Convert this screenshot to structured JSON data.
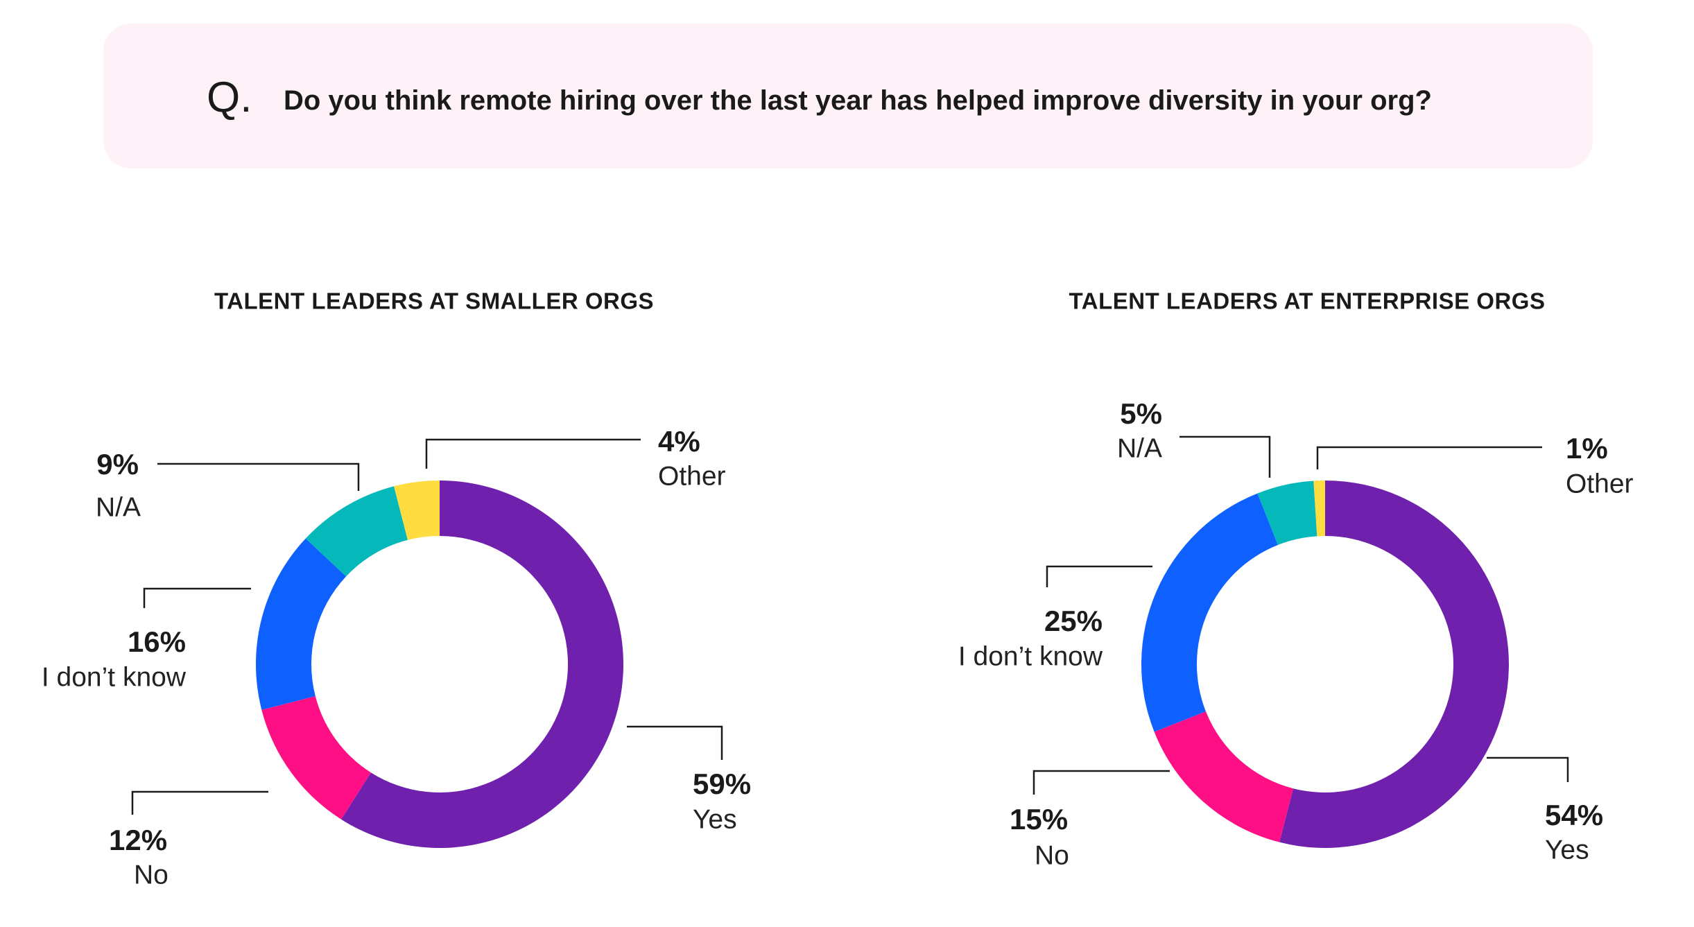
{
  "question": {
    "prefix": "Q.",
    "text": "Do you think remote hiring over the last year has helped improve diversity in your org?"
  },
  "colors": {
    "Yes": "#6f21ad",
    "No": "#ff0f85",
    "I don’t know": "#0f61ff",
    "N/A": "#05b8ba",
    "Other": "#ffdd40",
    "question_bg": "#fef2f8"
  },
  "chart_data": [
    {
      "type": "pie",
      "donut": true,
      "title": "TALENT LEADERS AT SMALLER ORGS",
      "categories": [
        "Yes",
        "No",
        "I don’t know",
        "N/A",
        "Other"
      ],
      "values": [
        59,
        12,
        16,
        9,
        4
      ],
      "labels": [
        "59%",
        "12%",
        "16%",
        "9%",
        "4%"
      ]
    },
    {
      "type": "pie",
      "donut": true,
      "title": "TALENT LEADERS AT ENTERPRISE ORGS",
      "categories": [
        "Yes",
        "No",
        "I don’t know",
        "N/A",
        "Other"
      ],
      "values": [
        54,
        15,
        25,
        5,
        1
      ],
      "labels": [
        "54%",
        "15%",
        "25%",
        "5%",
        "1%"
      ]
    }
  ]
}
